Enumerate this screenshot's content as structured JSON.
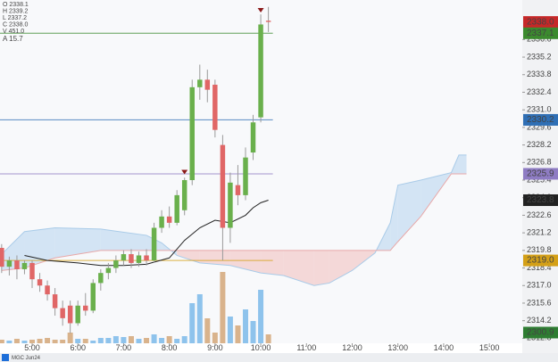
{
  "symbol": "MGC Jun24",
  "chart_data": {
    "type": "candlestick",
    "info": [
      "O 2338.1",
      "H 2339.2",
      "L 2337.2",
      "C 2338.0",
      "V 451.0"
    ],
    "info_color": "#b8bcc4",
    "atr": "A   15.7",
    "atr_color": "#4caf50",
    "x": [
      4.333,
      4.5,
      4.667,
      4.833,
      5.0,
      5.167,
      5.333,
      5.5,
      5.667,
      5.833,
      6.0,
      6.167,
      6.333,
      6.5,
      6.667,
      6.833,
      7.0,
      7.167,
      7.333,
      7.5,
      7.667,
      7.833,
      8.0,
      8.167,
      8.333,
      8.5,
      8.667,
      8.833,
      9.0,
      9.167,
      9.333,
      9.5,
      9.667,
      9.833,
      10.0,
      10.167
    ],
    "open": [
      2320.0,
      2318.5,
      2319.0,
      2318.3,
      2318.8,
      2317.5,
      2317.0,
      2316.3,
      2315.2,
      2315.4,
      2314.0,
      2315.4,
      2315.0,
      2317.2,
      2318.0,
      2318.4,
      2319.0,
      2319.5,
      2318.8,
      2319.4,
      2319.0,
      2321.6,
      2322.5,
      2322.0,
      2323.0,
      2325.4,
      2332.8,
      2333.4,
      2333.0,
      2328.2,
      2321.6,
      2325.0,
      2324.2,
      2327.6,
      2330.4,
      2338.1
    ],
    "high": [
      2320.3,
      2319.3,
      2319.4,
      2319.0,
      2319.0,
      2318.0,
      2317.4,
      2316.8,
      2315.8,
      2315.8,
      2315.8,
      2316.4,
      2317.5,
      2318.3,
      2318.8,
      2319.4,
      2319.8,
      2319.9,
      2319.7,
      2319.9,
      2322.0,
      2323.0,
      2323.3,
      2324.6,
      2325.6,
      2333.4,
      2334.6,
      2334.2,
      2333.4,
      2329.0,
      2326.0,
      2326.6,
      2328.0,
      2330.6,
      2338.6,
      2339.2
    ],
    "low": [
      2318.0,
      2317.8,
      2317.5,
      2317.9,
      2316.8,
      2316.5,
      2315.8,
      2314.6,
      2313.8,
      2313.2,
      2313.8,
      2314.6,
      2314.8,
      2316.6,
      2317.5,
      2318.0,
      2318.6,
      2318.4,
      2318.5,
      2318.6,
      2318.8,
      2321.2,
      2321.6,
      2321.8,
      2322.6,
      2325.0,
      2331.8,
      2331.6,
      2328.8,
      2319.0,
      2320.4,
      2323.4,
      2323.8,
      2327.0,
      2330.0,
      2337.2
    ],
    "close": [
      2318.5,
      2319.0,
      2318.3,
      2318.8,
      2317.5,
      2317.0,
      2316.3,
      2315.2,
      2314.4,
      2314.0,
      2315.4,
      2315.0,
      2317.2,
      2318.0,
      2318.4,
      2319.0,
      2319.5,
      2318.8,
      2319.4,
      2319.0,
      2321.6,
      2322.5,
      2322.0,
      2324.2,
      2325.4,
      2332.8,
      2333.4,
      2332.6,
      2329.4,
      2321.6,
      2325.2,
      2324.2,
      2327.2,
      2330.0,
      2337.8,
      2338.0
    ],
    "up_color": "#6ab04c",
    "down_color": "#e06666",
    "volume": [
      4,
      3,
      5,
      3,
      4,
      5,
      6,
      4,
      4,
      12,
      5,
      5,
      3,
      6,
      6,
      8,
      7,
      8,
      5,
      6,
      10,
      6,
      8,
      5,
      8,
      45,
      55,
      28,
      12,
      80,
      30,
      20,
      38,
      25,
      60,
      10
    ],
    "vlim": [
      0,
      160
    ],
    "vol_up_color": "#8ec3ec",
    "vol_down_color": "#d9b38c",
    "xlim": [
      4.297,
      15.72
    ],
    "xticks": [
      {
        "value": 5,
        "label": "5:00"
      },
      {
        "value": 6,
        "label": "6:00"
      },
      {
        "value": 7,
        "label": "7:00"
      },
      {
        "value": 8,
        "label": "8:00"
      },
      {
        "value": 9,
        "label": "9:00"
      },
      {
        "value": 10,
        "label": "10:00"
      },
      {
        "value": 11,
        "label": "11:00"
      },
      {
        "value": 12,
        "label": "12:00"
      },
      {
        "value": 13,
        "label": "13:00"
      },
      {
        "value": 14,
        "label": "14:00"
      },
      {
        "value": 15,
        "label": "15:00"
      }
    ],
    "ylim": [
      2312.4,
      2339.75
    ],
    "yticks": [
      2336.6,
      2335.2,
      2333.8,
      2332.4,
      {
        "value": 2331.0,
        "label": "2331.0"
      },
      2329.6,
      2328.2,
      2326.8,
      2325.4,
      {
        "value": 2324.0,
        "label": "2324.0"
      },
      2322.6,
      2321.2,
      2319.8,
      2318.4,
      {
        "value": 2317.0,
        "label": "2317.0"
      },
      2315.6,
      2314.2,
      2312.8
    ],
    "cloud": {
      "x": [
        4.333,
        4.833,
        5.5,
        6.5,
        7.5,
        7.833,
        8.167,
        8.667,
        9.333,
        10.0,
        10.5,
        11.167,
        11.5,
        12.0,
        12.5,
        12.833,
        13.0,
        13.5,
        14.167,
        14.333,
        14.5
      ],
      "span_a": [
        2319.5,
        2321.3,
        2321.6,
        2321.5,
        2321.0,
        2320.4,
        2319.4,
        2318.8,
        2318.6,
        2318.0,
        2317.8,
        2317.0,
        2317.2,
        2318.2,
        2319.6,
        2322.0,
        2325.0,
        2325.4,
        2326.0,
        2327.4,
        2327.4
      ],
      "span_b": [
        2318.2,
        2318.4,
        2319.2,
        2319.8,
        2319.8,
        2319.8,
        2319.8,
        2319.8,
        2319.8,
        2319.8,
        2319.8,
        2319.8,
        2319.8,
        2319.8,
        2319.8,
        2319.8,
        2320.5,
        2322.5,
        2325.9,
        2325.9,
        2325.9
      ],
      "up_color": "#c9dff2",
      "down_color": "#f3cfcf",
      "a_color": "#a9cbe8",
      "b_color": "#e8a8a8"
    },
    "base_line": {
      "x": [
        4.833,
        5.333,
        6.0,
        6.5,
        7.0,
        7.5,
        8.0,
        8.333,
        8.667,
        9.0,
        9.333,
        9.667,
        9.833,
        10.0,
        10.167
      ],
      "values": [
        2319.4,
        2319.0,
        2318.8,
        2318.6,
        2318.6,
        2318.7,
        2319.2,
        2320.6,
        2321.6,
        2322.2,
        2322.0,
        2322.6,
        2323.2,
        2323.6,
        2323.8
      ],
      "color": "#222222"
    },
    "levels": [
      {
        "value": 2338.0,
        "label": "2338.0",
        "color": "#c62828",
        "text_color": "#ffffff",
        "line": false
      },
      {
        "value": 2337.1,
        "label": "2337.1",
        "color": "#3b8a2e",
        "text_color": "#ffffff",
        "line": true
      },
      {
        "value": 2330.2,
        "label": "2330.2",
        "color": "#2f6fb5",
        "text_color": "#ffffff",
        "line": true
      },
      {
        "value": 2325.9,
        "label": "2325.9",
        "color": "#8e7cc3",
        "text_color": "#ffffff",
        "line": true
      },
      {
        "value": 2323.8,
        "label": "2323.8",
        "color": "#222222",
        "text_color": "#ffffff",
        "line": false
      },
      {
        "value": 2319.0,
        "label": "2319.0",
        "color": "#d4a017",
        "text_color": "#222222",
        "line": true
      },
      {
        "value": 2300.9,
        "label": "2300.9",
        "color": "#2e7d32",
        "text_color": "#ffffff",
        "line": false
      }
    ],
    "signals": {
      "x": [
        8.333,
        10.0
      ],
      "values": [
        2326.0,
        2338.9
      ],
      "color": "#8b1a1a"
    }
  }
}
